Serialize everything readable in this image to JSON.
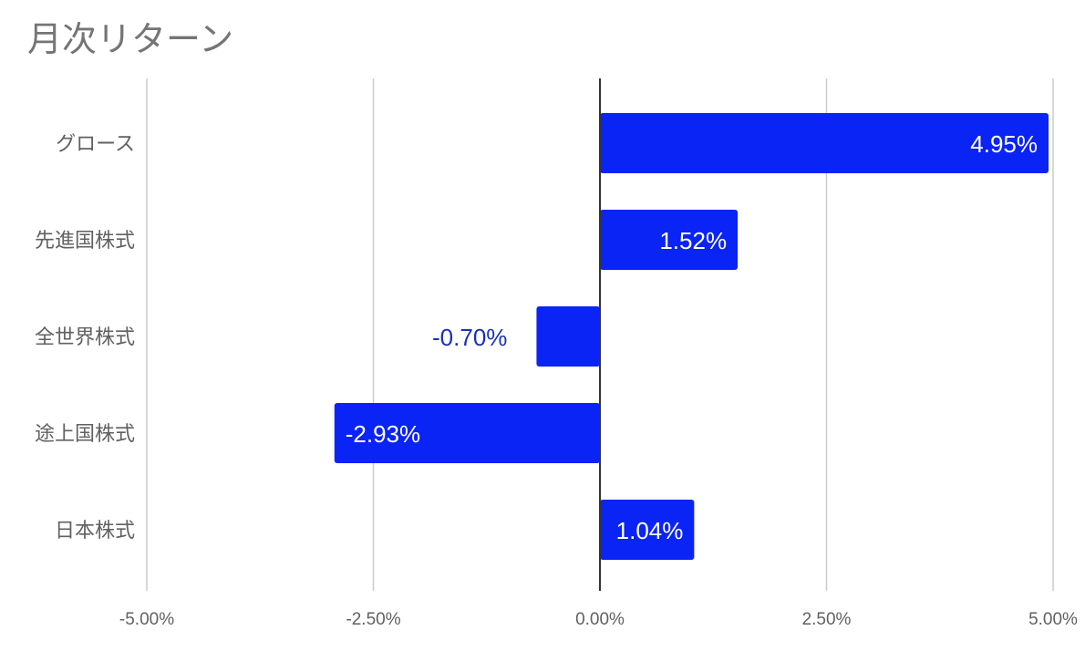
{
  "chart_data": {
    "type": "bar",
    "orientation": "horizontal",
    "title": "月次リターン",
    "categories": [
      "グロース",
      "先進国株式",
      "全世界株式",
      "途上国株式",
      "日本株式"
    ],
    "values": [
      4.95,
      1.52,
      -0.7,
      -2.93,
      1.04
    ],
    "value_labels": [
      "4.95%",
      "1.52%",
      "-0.70%",
      "-2.93%",
      "1.04%"
    ],
    "xlim": [
      -5,
      5
    ],
    "x_ticks": [
      -5,
      -2.5,
      0,
      2.5,
      5
    ],
    "x_tick_labels": [
      "-5.00%",
      "-2.50%",
      "0.00%",
      "2.50%",
      "5.00%"
    ],
    "grid": true,
    "legend": "none",
    "colors": {
      "bar": "#0a24f5",
      "label_inside": "#ffffff",
      "label_outside": "#1a30b8",
      "grid": "#cccccc",
      "zero_line": "#333333"
    }
  }
}
